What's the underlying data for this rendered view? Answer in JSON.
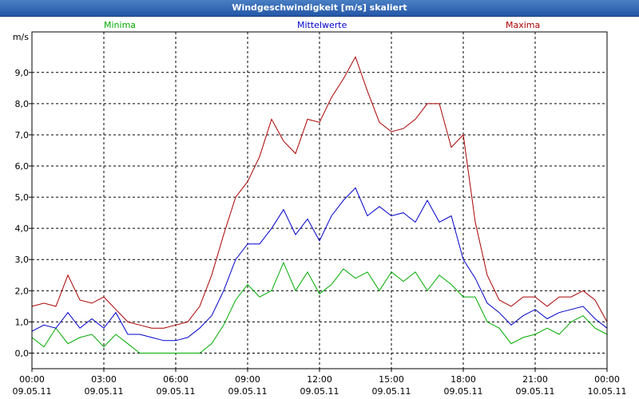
{
  "window": {
    "title": "Windgeschwindigkeit [m/s] skaliert"
  },
  "chart_data": {
    "type": "line",
    "title": "Windgeschwindigkeit [m/s] skaliert",
    "ylabel": "m/s",
    "xlabel": "",
    "ylim": [
      -0.5,
      10.3
    ],
    "xlim": [
      0,
      24
    ],
    "grid": true,
    "legend_placement": "top",
    "yticks": [
      "0,0",
      "1,0",
      "2,0",
      "3,0",
      "4,0",
      "5,0",
      "6,0",
      "7,0",
      "8,0",
      "9,0"
    ],
    "xticks": [
      {
        "time": "00:00",
        "date": "09.05.11"
      },
      {
        "time": "03:00",
        "date": "09.05.11"
      },
      {
        "time": "06:00",
        "date": "09.05.11"
      },
      {
        "time": "09:00",
        "date": "09.05.11"
      },
      {
        "time": "12:00",
        "date": "09.05.11"
      },
      {
        "time": "15:00",
        "date": "09.05.11"
      },
      {
        "time": "18:00",
        "date": "09.05.11"
      },
      {
        "time": "21:00",
        "date": "09.05.11"
      },
      {
        "time": "00:00",
        "date": "10.05.11"
      }
    ],
    "series": [
      {
        "name": "Minima",
        "color": "#00aa00",
        "x": [
          0,
          0.5,
          1,
          1.5,
          2,
          2.5,
          3,
          3.5,
          4,
          4.5,
          5,
          5.5,
          6,
          6.5,
          7,
          7.5,
          8,
          8.5,
          9,
          9.5,
          10,
          10.5,
          11,
          11.5,
          12,
          12.5,
          13,
          13.5,
          14,
          14.5,
          15,
          15.5,
          16,
          16.5,
          17,
          17.5,
          18,
          18.5,
          19,
          19.5,
          20,
          20.5,
          21,
          21.5,
          22,
          22.5,
          23,
          23.5,
          24
        ],
        "values": [
          0.5,
          0.2,
          0.8,
          0.3,
          0.5,
          0.6,
          0.2,
          0.6,
          0.3,
          0.0,
          0.0,
          0.0,
          0.0,
          0.0,
          0.0,
          0.3,
          0.9,
          1.7,
          2.2,
          1.8,
          2.0,
          2.9,
          2.0,
          2.6,
          1.9,
          2.2,
          2.7,
          2.4,
          2.6,
          2.0,
          2.6,
          2.3,
          2.6,
          2.0,
          2.5,
          2.2,
          1.8,
          1.8,
          1.0,
          0.8,
          0.3,
          0.5,
          0.6,
          0.8,
          0.6,
          1.0,
          1.2,
          0.8,
          0.6
        ]
      },
      {
        "name": "Mittelwerte",
        "color": "#0000cc",
        "x": [
          0,
          0.5,
          1,
          1.5,
          2,
          2.5,
          3,
          3.5,
          4,
          4.5,
          5,
          5.5,
          6,
          6.5,
          7,
          7.5,
          8,
          8.5,
          9,
          9.5,
          10,
          10.5,
          11,
          11.5,
          12,
          12.5,
          13,
          13.5,
          14,
          14.5,
          15,
          15.5,
          16,
          16.5,
          17,
          17.5,
          18,
          18.5,
          19,
          19.5,
          20,
          20.5,
          21,
          21.5,
          22,
          22.5,
          23,
          23.5,
          24
        ],
        "values": [
          0.7,
          0.9,
          0.8,
          1.3,
          0.8,
          1.1,
          0.8,
          1.3,
          0.6,
          0.6,
          0.5,
          0.4,
          0.4,
          0.5,
          0.8,
          1.2,
          2.0,
          3.0,
          3.5,
          3.5,
          4.0,
          4.6,
          3.8,
          4.3,
          3.6,
          4.4,
          4.9,
          5.3,
          4.4,
          4.7,
          4.4,
          4.5,
          4.2,
          4.9,
          4.2,
          4.4,
          3.0,
          2.4,
          1.6,
          1.3,
          0.9,
          1.2,
          1.4,
          1.1,
          1.3,
          1.4,
          1.5,
          1.1,
          0.8
        ]
      },
      {
        "name": "Maxima",
        "color": "#aa0000",
        "x": [
          0,
          0.5,
          1,
          1.5,
          2,
          2.5,
          3,
          3.5,
          4,
          4.5,
          5,
          5.5,
          6,
          6.5,
          7,
          7.5,
          8,
          8.5,
          9,
          9.5,
          10,
          10.5,
          11,
          11.5,
          12,
          12.5,
          13,
          13.5,
          14,
          14.5,
          15,
          15.5,
          16,
          16.5,
          17,
          17.5,
          18,
          18.5,
          19,
          19.5,
          20,
          20.5,
          21,
          21.5,
          22,
          22.5,
          23,
          23.5,
          24
        ],
        "values": [
          1.5,
          1.6,
          1.5,
          2.5,
          1.7,
          1.6,
          1.8,
          1.4,
          1.0,
          0.9,
          0.8,
          0.8,
          0.9,
          1.0,
          1.5,
          2.5,
          3.8,
          5.0,
          5.5,
          6.3,
          7.5,
          6.8,
          6.4,
          7.5,
          7.4,
          8.2,
          8.8,
          9.5,
          8.4,
          7.4,
          7.1,
          7.2,
          7.5,
          8.0,
          8.0,
          6.6,
          7.0,
          4.2,
          2.5,
          1.7,
          1.5,
          1.8,
          1.8,
          1.5,
          1.8,
          1.8,
          2.0,
          1.7,
          1.0
        ]
      }
    ]
  }
}
